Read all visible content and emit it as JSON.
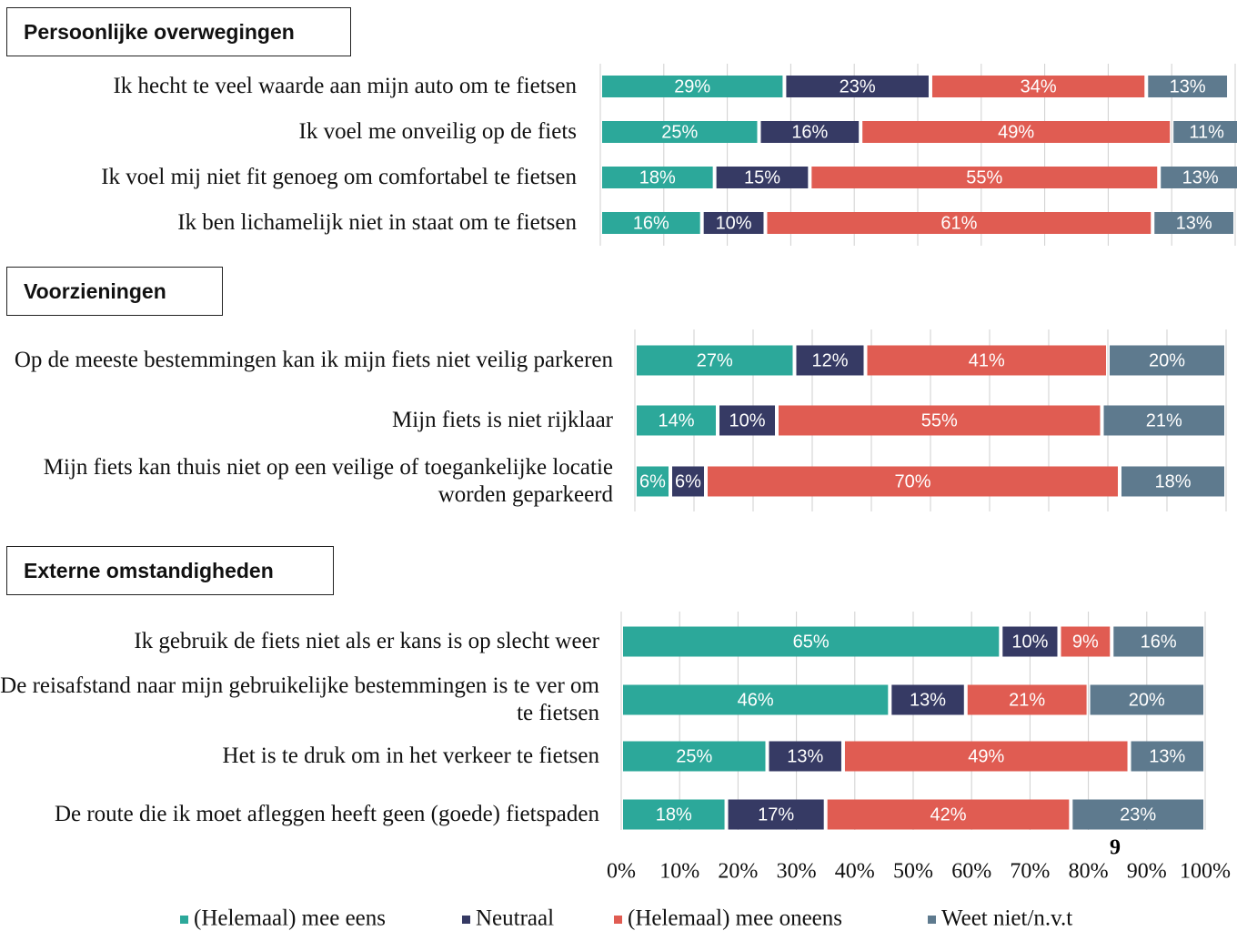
{
  "page_number": "9",
  "chart_data": [
    {
      "type": "bar",
      "orientation": "horizontal",
      "stacked": true,
      "title": "Persoonlijke overwegingen",
      "categories": [
        "Ik hecht te veel waarde aan mijn auto om te fietsen",
        "Ik voel me onveilig op de fiets",
        "Ik voel mij niet fit genoeg om comfortabel te fietsen",
        "Ik ben lichamelijk niet in staat om te fietsen"
      ],
      "series": [
        {
          "name": "(Helemaal) mee eens",
          "color": "#2ca89a",
          "values": [
            29,
            25,
            18,
            16
          ],
          "value_labels": [
            "29%",
            "25%",
            "18%",
            "16%"
          ]
        },
        {
          "name": "Neutraal",
          "color": "#363a64",
          "values": [
            23,
            16,
            15,
            10
          ],
          "value_labels": [
            "23%",
            "16%",
            "15%",
            "10%"
          ]
        },
        {
          "name": "(Helemaal) mee oneens",
          "color": "#e05c52",
          "values": [
            34,
            49,
            55,
            61
          ],
          "value_labels": [
            "34%",
            "49%",
            "55%",
            "61%"
          ]
        },
        {
          "name": "Weet niet/n.v.t",
          "color": "#5e7a8e",
          "values": [
            13,
            11,
            13,
            13
          ],
          "value_labels": [
            "13%",
            "11%",
            "13%",
            "13%"
          ]
        }
      ]
    },
    {
      "type": "bar",
      "orientation": "horizontal",
      "stacked": true,
      "title": "Voorzieningen",
      "categories": [
        "Op de meeste bestemmingen kan ik mijn fiets niet veilig parkeren",
        "Mijn fiets is niet rijklaar",
        "Mijn fiets kan thuis niet op een veilige of toegankelijke locatie worden geparkeerd"
      ],
      "series": [
        {
          "values": [
            27,
            14,
            6
          ],
          "value_labels": [
            "27%",
            "14%",
            "6%"
          ]
        },
        {
          "values": [
            12,
            10,
            6
          ],
          "value_labels": [
            "12%",
            "10%",
            "6%"
          ]
        },
        {
          "values": [
            41,
            55,
            70
          ],
          "value_labels": [
            "41%",
            "55%",
            "70%"
          ]
        },
        {
          "values": [
            20,
            21,
            18
          ],
          "value_labels": [
            "20%",
            "21%",
            "18%"
          ]
        }
      ]
    },
    {
      "type": "bar",
      "orientation": "horizontal",
      "stacked": true,
      "title": "Externe omstandigheden",
      "categories": [
        "Ik gebruik de fiets niet als er kans is op slecht weer",
        "De reisafstand naar mijn gebruikelijke bestemmingen is te ver om te fietsen",
        "Het is te druk om in het verkeer te fietsen",
        "De route die ik moet afleggen heeft geen (goede) fietspaden"
      ],
      "series": [
        {
          "values": [
            65,
            46,
            25,
            18
          ],
          "value_labels": [
            "65%",
            "46%",
            "25%",
            "18%"
          ]
        },
        {
          "values": [
            10,
            13,
            13,
            17
          ],
          "value_labels": [
            "10%",
            "13%",
            "13%",
            "17%"
          ]
        },
        {
          "values": [
            9,
            21,
            49,
            42
          ],
          "value_labels": [
            "9%",
            "21%",
            "49%",
            "42%"
          ]
        },
        {
          "values": [
            16,
            20,
            13,
            23
          ],
          "value_labels": [
            "16%",
            "20%",
            "13%",
            "23%"
          ]
        }
      ],
      "xlim": [
        0,
        100
      ],
      "xticks": [
        {
          "value": 0,
          "label": "0%"
        },
        {
          "value": 10,
          "label": "10%"
        },
        {
          "value": 20,
          "label": "20%"
        },
        {
          "value": 30,
          "label": "30%"
        },
        {
          "value": 40,
          "label": "40%"
        },
        {
          "value": 50,
          "label": "50%"
        },
        {
          "value": 60,
          "label": "60%"
        },
        {
          "value": 70,
          "label": "70%"
        },
        {
          "value": 80,
          "label": "80%"
        },
        {
          "value": 90,
          "label": "90%"
        },
        {
          "value": 100,
          "label": "100%"
        }
      ]
    }
  ]
}
